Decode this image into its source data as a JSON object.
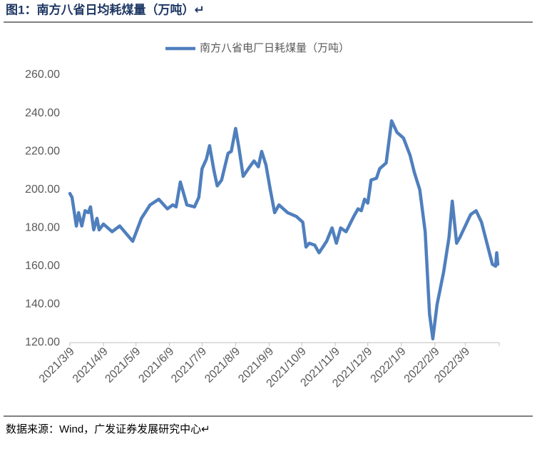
{
  "chart_data": {
    "type": "line",
    "title": "图1：南方八省日均耗煤量（万吨）↵",
    "source": "数据来源：Wind，广发证券发展研究中心↵",
    "x": [
      "2021/3/9",
      "2021/3/11",
      "2021/3/15",
      "2021/3/17",
      "2021/3/20",
      "2021/3/23",
      "2021/3/26",
      "2021/3/28",
      "2021/3/31",
      "2021/4/3",
      "2021/4/5",
      "2021/4/9",
      "2021/4/17",
      "2021/4/24",
      "2021/4/30",
      "2021/5/6",
      "2021/5/14",
      "2021/5/22",
      "2021/5/30",
      "2021/6/7",
      "2021/6/12",
      "2021/6/15",
      "2021/6/19",
      "2021/6/25",
      "2021/7/2",
      "2021/7/6",
      "2021/7/9",
      "2021/7/13",
      "2021/7/16",
      "2021/7/20",
      "2021/7/23",
      "2021/7/27",
      "2021/8/2",
      "2021/8/5",
      "2021/8/9",
      "2021/8/12",
      "2021/8/16",
      "2021/8/22",
      "2021/8/26",
      "2021/8/30",
      "2021/9/2",
      "2021/9/6",
      "2021/9/10",
      "2021/9/14",
      "2021/9/18",
      "2021/9/26",
      "2021/10/4",
      "2021/10/10",
      "2021/10/13",
      "2021/10/16",
      "2021/10/21",
      "2021/10/25",
      "2021/11/1",
      "2021/11/6",
      "2021/11/10",
      "2021/11/14",
      "2021/11/19",
      "2021/11/26",
      "2021/11/30",
      "2021/12/3",
      "2021/12/6",
      "2021/12/9",
      "2021/12/12",
      "2021/12/17",
      "2021/12/20",
      "2021/12/26",
      "2021/12/31",
      "2022/1/5",
      "2022/1/11",
      "2022/1/17",
      "2022/1/21",
      "2022/1/26",
      "2022/1/31",
      "2022/2/4",
      "2022/2/7",
      "2022/2/11",
      "2022/2/17",
      "2022/2/22",
      "2022/2/25",
      "2022/3/1",
      "2022/3/4",
      "2022/3/9",
      "2022/3/14",
      "2022/3/19",
      "2022/3/24",
      "2022/3/29",
      "2022/4/3",
      "2022/4/6",
      "2022/4/7",
      "2022/4/8"
    ],
    "series": [
      {
        "name": "南方八省电厂日耗煤量（万吨）",
        "color": "#4f7fbd",
        "values": [
          198,
          196,
          181,
          188,
          181,
          189,
          188,
          191,
          179,
          185,
          179,
          182,
          178,
          181,
          177,
          173,
          185,
          192,
          195,
          190,
          192,
          191,
          204,
          192,
          191,
          196,
          211,
          216,
          223,
          210,
          202,
          205,
          219,
          220,
          232,
          222,
          207,
          212,
          215,
          212,
          220,
          213,
          200,
          188,
          192,
          188,
          186,
          183,
          170,
          172,
          171,
          167,
          173,
          180,
          172,
          180,
          178,
          186,
          190,
          189,
          195,
          193,
          205,
          206,
          211,
          214,
          236,
          230,
          227,
          218,
          209,
          200,
          178,
          135,
          122,
          140,
          157,
          175,
          194,
          172,
          175,
          181,
          187,
          189,
          183,
          172,
          161,
          160,
          167,
          161
        ]
      }
    ],
    "xlim": [
      "2021/3/9",
      "2022/4/8"
    ],
    "xticks": [
      "2021/3/9",
      "2021/4/9",
      "2021/5/9",
      "2021/6/9",
      "2021/7/9",
      "2021/8/9",
      "2021/9/9",
      "2021/10/9",
      "2021/11/9",
      "2021/12/9",
      "2022/1/9",
      "2022/2/9",
      "2022/3/9"
    ],
    "ylim": [
      120,
      260
    ],
    "yticks": [
      {
        "value": 120,
        "label": "120.00"
      },
      {
        "value": 140,
        "label": "140.00"
      },
      {
        "value": 160,
        "label": "160.00"
      },
      {
        "value": 180,
        "label": "180.00"
      },
      {
        "value": 200,
        "label": "200.00"
      },
      {
        "value": 220,
        "label": "220.00"
      },
      {
        "value": 240,
        "label": "240.00"
      },
      {
        "value": 260,
        "label": "260.00"
      }
    ],
    "grid": false,
    "legend": "top"
  }
}
